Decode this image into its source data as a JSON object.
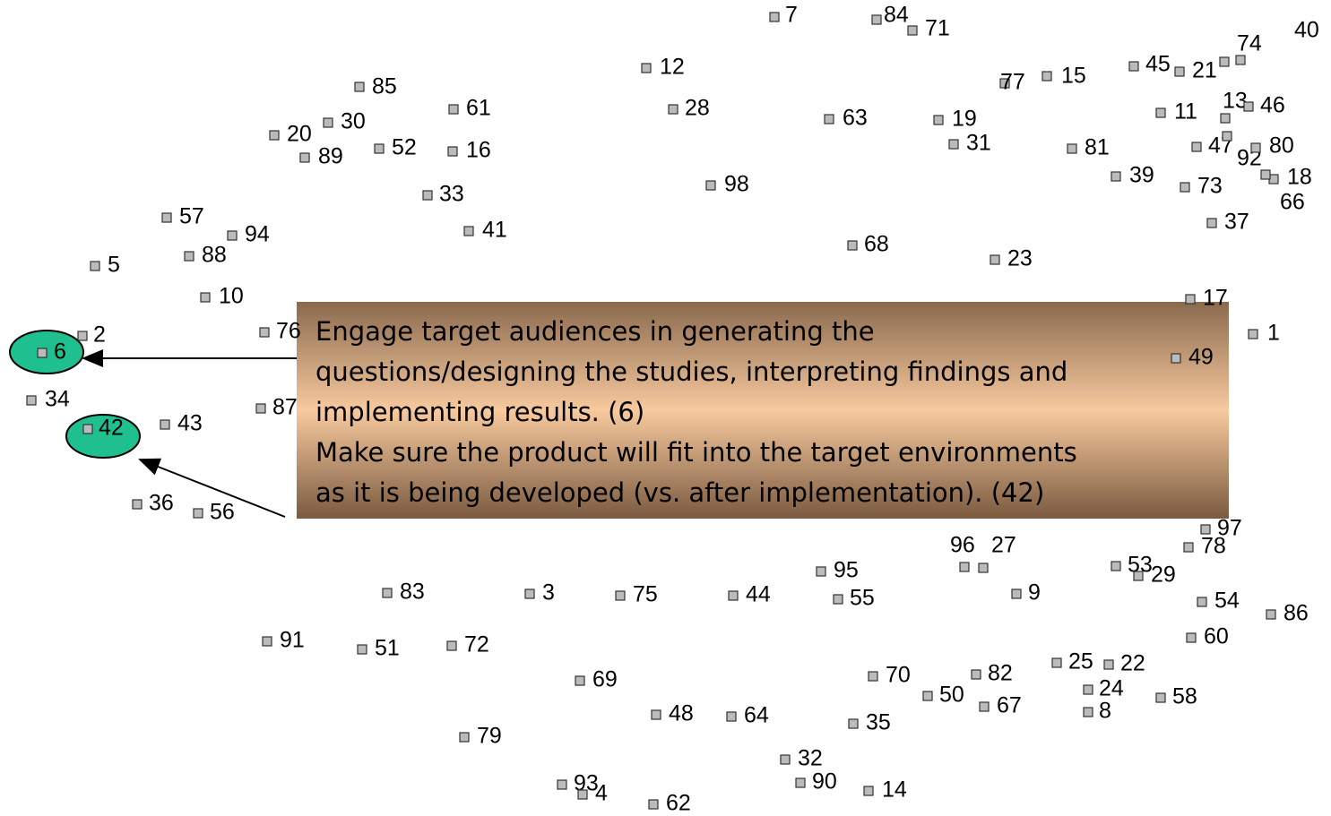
{
  "nodes": [
    {
      "label": "7"
    },
    {
      "label": "84"
    },
    {
      "label": "71"
    },
    {
      "label": "40"
    },
    {
      "label": "74"
    },
    {
      "label": "45"
    },
    {
      "label": "21"
    },
    {
      "label": "12"
    },
    {
      "label": "85"
    },
    {
      "label": "77"
    },
    {
      "label": "15"
    },
    {
      "label": "61"
    },
    {
      "label": "28"
    },
    {
      "label": "63"
    },
    {
      "label": "19"
    },
    {
      "label": "11"
    },
    {
      "label": "13"
    },
    {
      "label": "46"
    },
    {
      "label": "30"
    },
    {
      "label": "20"
    },
    {
      "label": "89"
    },
    {
      "label": "52"
    },
    {
      "label": "16"
    },
    {
      "label": "31"
    },
    {
      "label": "81"
    },
    {
      "label": "47"
    },
    {
      "label": "92"
    },
    {
      "label": "80"
    },
    {
      "label": "39"
    },
    {
      "label": "73"
    },
    {
      "label": "18"
    },
    {
      "label": "66"
    },
    {
      "label": "98"
    },
    {
      "label": "33"
    },
    {
      "label": "57"
    },
    {
      "label": "94"
    },
    {
      "label": "41"
    },
    {
      "label": "37"
    },
    {
      "label": "68"
    },
    {
      "label": "88"
    },
    {
      "label": "23"
    },
    {
      "label": "5"
    },
    {
      "label": "10"
    },
    {
      "label": "17"
    },
    {
      "label": "2"
    },
    {
      "label": "76"
    },
    {
      "label": "1"
    },
    {
      "label": "6"
    },
    {
      "label": "49"
    },
    {
      "label": "34"
    },
    {
      "label": "87"
    },
    {
      "label": "42"
    },
    {
      "label": "43"
    },
    {
      "label": "36"
    },
    {
      "label": "56"
    },
    {
      "label": "97"
    },
    {
      "label": "78"
    },
    {
      "label": "96"
    },
    {
      "label": "27"
    },
    {
      "label": "95"
    },
    {
      "label": "53"
    },
    {
      "label": "29"
    },
    {
      "label": "83"
    },
    {
      "label": "3"
    },
    {
      "label": "75"
    },
    {
      "label": "44"
    },
    {
      "label": "55"
    },
    {
      "label": "9"
    },
    {
      "label": "54"
    },
    {
      "label": "86"
    },
    {
      "label": "91"
    },
    {
      "label": "51"
    },
    {
      "label": "72"
    },
    {
      "label": "60"
    },
    {
      "label": "69"
    },
    {
      "label": "70"
    },
    {
      "label": "82"
    },
    {
      "label": "25"
    },
    {
      "label": "22"
    },
    {
      "label": "24"
    },
    {
      "label": "50"
    },
    {
      "label": "67"
    },
    {
      "label": "8"
    },
    {
      "label": "58"
    },
    {
      "label": "48"
    },
    {
      "label": "64"
    },
    {
      "label": "35"
    },
    {
      "label": "79"
    },
    {
      "label": "32"
    },
    {
      "label": "90"
    },
    {
      "label": "14"
    },
    {
      "label": "93"
    },
    {
      "label": "4"
    },
    {
      "label": "62"
    }
  ],
  "callout": {
    "lines": [
      "Engage target audiences in generating the",
      "questions/designing the studies, interpreting findings and",
      "implementing results. (6)",
      "Make sure the product will fit into the target environments",
      "as it is being developed (vs. after implementation). (42)"
    ]
  }
}
